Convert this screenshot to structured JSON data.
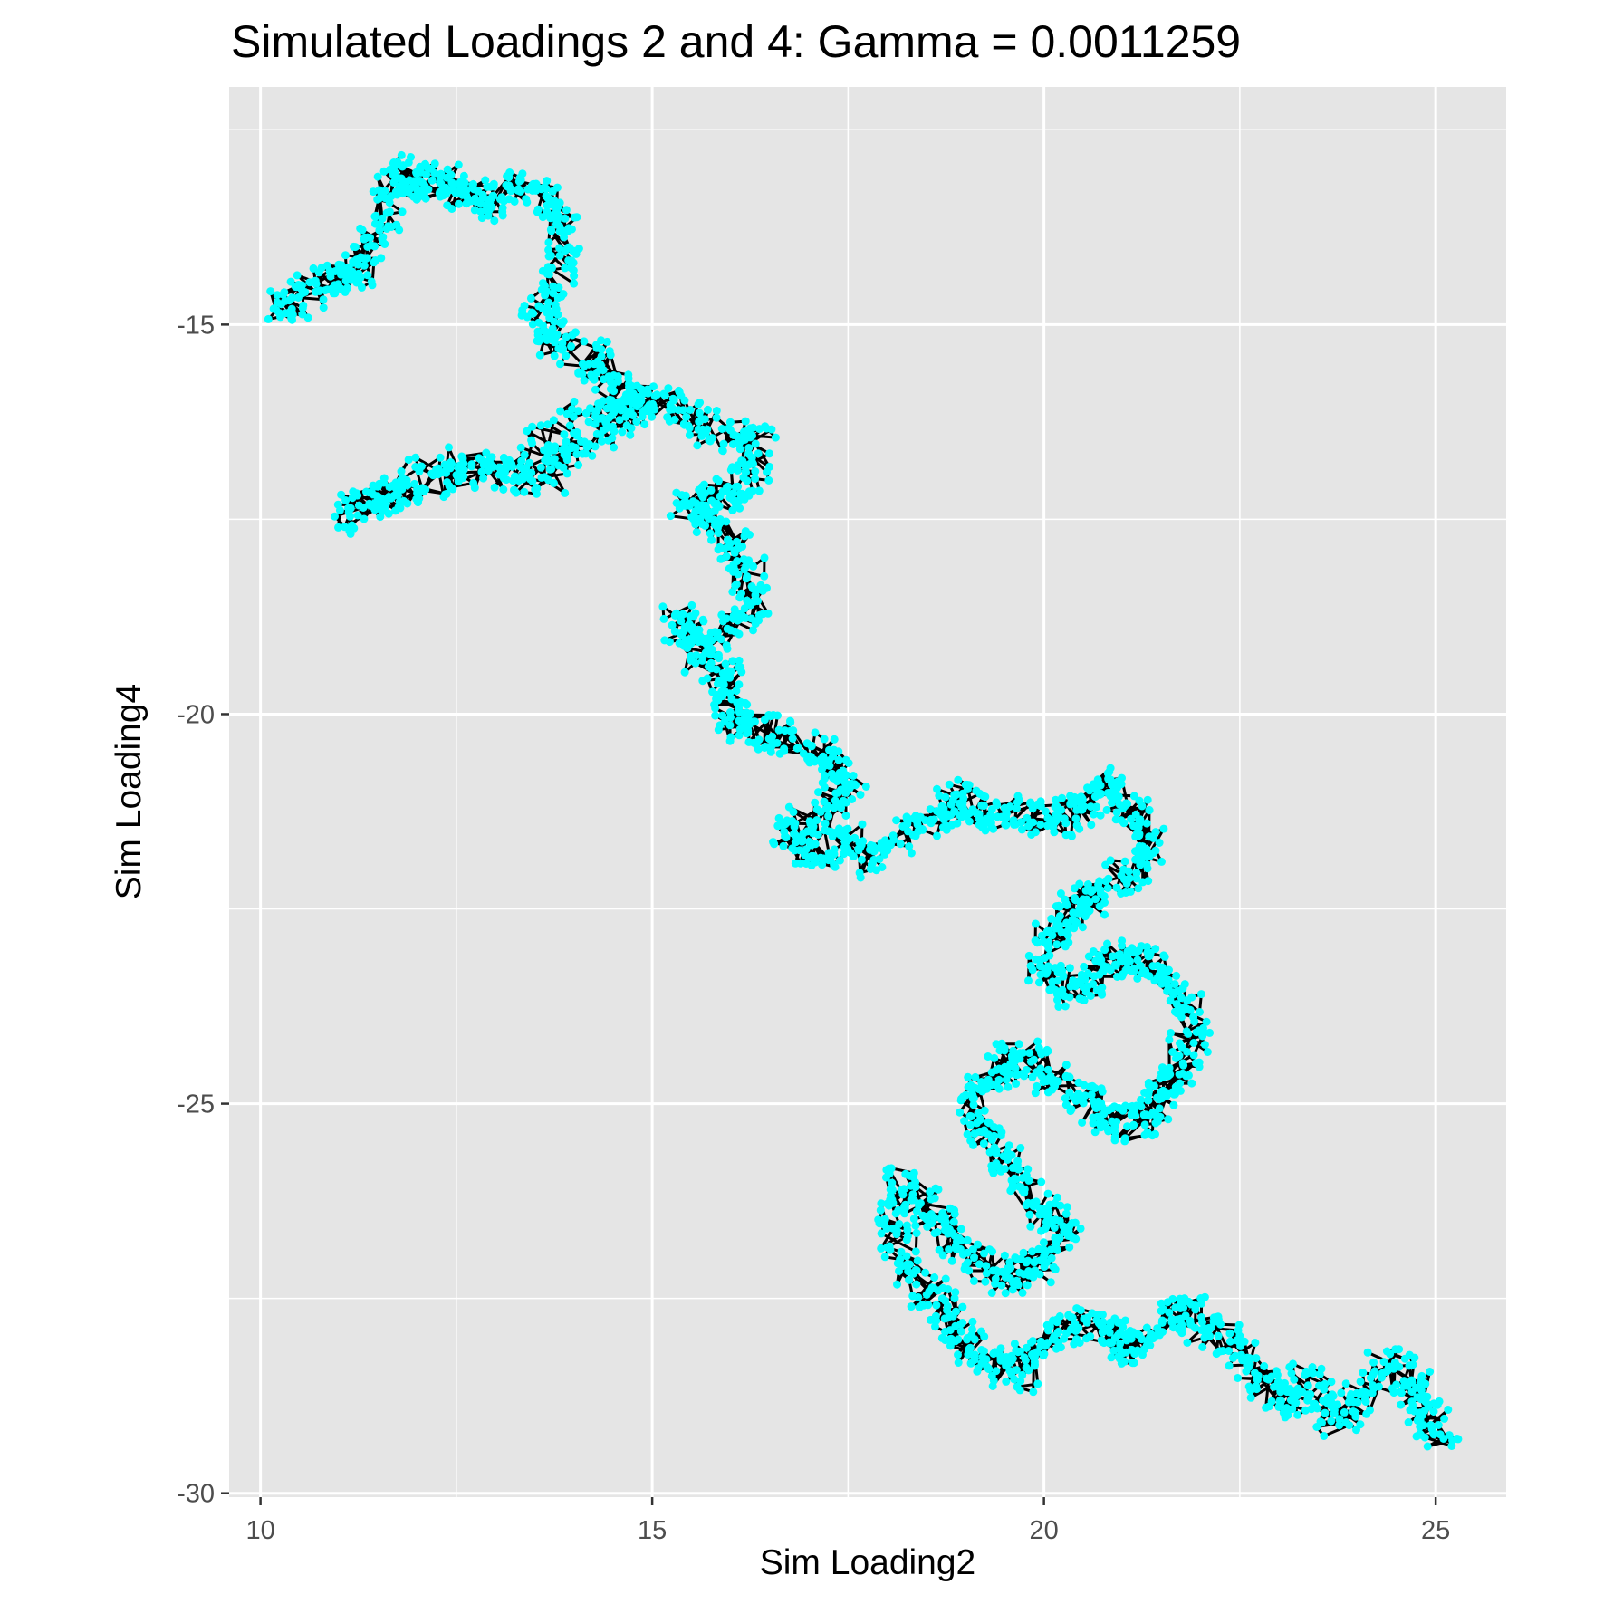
{
  "chart_data": {
    "type": "scatter",
    "title": "Simulated Loadings 2 and 4: Gamma = 0.0011259",
    "xlabel": "Sim Loading2",
    "ylabel": "Sim Loading4",
    "xlim": [
      9.6,
      25.9
    ],
    "ylim": [
      -30.05,
      -11.95
    ],
    "x_ticks": [
      10,
      15,
      20,
      25
    ],
    "y_ticks": [
      -30,
      -25,
      -20,
      -15
    ],
    "x_tick_labels": [
      "10",
      "15",
      "20",
      "25"
    ],
    "y_tick_labels": [
      "-30",
      "-25",
      "-20",
      "-15"
    ],
    "x_minor_gridlines": [
      12.5,
      17.5,
      22.5
    ],
    "y_minor_gridlines": [
      -27.5,
      -22.5,
      -17.5,
      -12.5
    ],
    "grid": true,
    "legend": "none",
    "point_color": "#00FFFF",
    "line_color": "#000000",
    "panel_background": "#E5E5E5",
    "series": [
      {
        "values": [
          [
            10.2,
            -14.8
          ],
          [
            10.5,
            -14.7
          ],
          [
            10.9,
            -14.4
          ],
          [
            11.2,
            -14.5
          ],
          [
            11.4,
            -14.0
          ],
          [
            11.6,
            -13.6
          ],
          [
            11.8,
            -13.0
          ],
          [
            12.0,
            -13.2
          ],
          [
            12.3,
            -13.1
          ],
          [
            12.6,
            -13.3
          ],
          [
            12.9,
            -13.5
          ],
          [
            13.2,
            -13.2
          ],
          [
            13.6,
            -13.4
          ],
          [
            13.9,
            -13.8
          ],
          [
            13.8,
            -14.3
          ],
          [
            13.5,
            -14.8
          ],
          [
            13.7,
            -15.2
          ],
          [
            14.2,
            -15.4
          ],
          [
            14.5,
            -15.8
          ],
          [
            14.9,
            -16.0
          ],
          [
            14.5,
            -16.3
          ],
          [
            14.0,
            -16.6
          ],
          [
            13.6,
            -17.0
          ],
          [
            13.0,
            -16.9
          ],
          [
            12.4,
            -17.0
          ],
          [
            11.8,
            -17.1
          ],
          [
            11.4,
            -17.3
          ],
          [
            11.1,
            -17.5
          ],
          [
            12.1,
            -16.8
          ],
          [
            13.4,
            -16.8
          ],
          [
            14.1,
            -16.1
          ],
          [
            15.0,
            -16.0
          ],
          [
            15.4,
            -16.1
          ],
          [
            15.8,
            -16.4
          ],
          [
            16.4,
            -16.5
          ],
          [
            16.2,
            -17.0
          ],
          [
            15.8,
            -17.2
          ],
          [
            15.4,
            -17.3
          ],
          [
            15.9,
            -17.6
          ],
          [
            16.2,
            -18.0
          ],
          [
            16.3,
            -18.6
          ],
          [
            16.0,
            -18.9
          ],
          [
            15.6,
            -19.1
          ],
          [
            15.3,
            -18.8
          ],
          [
            15.7,
            -19.4
          ],
          [
            16.0,
            -19.6
          ],
          [
            16.0,
            -20.1
          ],
          [
            16.4,
            -20.2
          ],
          [
            16.9,
            -20.4
          ],
          [
            17.3,
            -20.6
          ],
          [
            17.6,
            -21.0
          ],
          [
            17.1,
            -21.3
          ],
          [
            16.7,
            -21.6
          ],
          [
            17.1,
            -21.8
          ],
          [
            17.5,
            -21.6
          ],
          [
            17.8,
            -21.9
          ],
          [
            18.3,
            -21.5
          ],
          [
            18.7,
            -21.3
          ],
          [
            19.0,
            -21.0
          ],
          [
            19.3,
            -21.3
          ],
          [
            19.7,
            -21.2
          ],
          [
            20.1,
            -21.4
          ],
          [
            20.5,
            -21.2
          ],
          [
            20.8,
            -20.8
          ],
          [
            21.1,
            -21.2
          ],
          [
            21.4,
            -21.6
          ],
          [
            21.1,
            -22.0
          ],
          [
            20.7,
            -22.3
          ],
          [
            20.3,
            -22.5
          ],
          [
            20.1,
            -22.8
          ],
          [
            20.0,
            -23.3
          ],
          [
            20.4,
            -23.6
          ],
          [
            20.7,
            -23.3
          ],
          [
            21.0,
            -23.1
          ],
          [
            21.4,
            -23.2
          ],
          [
            21.7,
            -23.6
          ],
          [
            21.9,
            -24.1
          ],
          [
            21.7,
            -24.6
          ],
          [
            21.5,
            -25.0
          ],
          [
            21.2,
            -25.3
          ],
          [
            20.8,
            -25.2
          ],
          [
            20.4,
            -24.9
          ],
          [
            20.0,
            -24.6
          ],
          [
            19.7,
            -24.3
          ],
          [
            19.4,
            -24.6
          ],
          [
            19.1,
            -25.0
          ],
          [
            19.3,
            -25.5
          ],
          [
            19.6,
            -25.9
          ],
          [
            19.9,
            -26.3
          ],
          [
            20.3,
            -26.6
          ],
          [
            20.0,
            -27.0
          ],
          [
            19.6,
            -27.3
          ],
          [
            19.2,
            -27.0
          ],
          [
            18.8,
            -26.7
          ],
          [
            18.5,
            -26.3
          ],
          [
            18.2,
            -26.0
          ],
          [
            18.1,
            -26.6
          ],
          [
            18.3,
            -27.2
          ],
          [
            18.7,
            -27.6
          ],
          [
            18.9,
            -28.0
          ],
          [
            19.3,
            -28.3
          ],
          [
            19.7,
            -28.5
          ],
          [
            20.0,
            -28.1
          ],
          [
            20.4,
            -27.8
          ],
          [
            20.8,
            -27.9
          ],
          [
            21.1,
            -28.2
          ],
          [
            21.4,
            -27.9
          ],
          [
            21.8,
            -27.6
          ],
          [
            22.1,
            -27.9
          ],
          [
            22.5,
            -28.1
          ],
          [
            22.8,
            -28.6
          ],
          [
            23.1,
            -28.9
          ],
          [
            23.4,
            -28.5
          ],
          [
            23.7,
            -29.1
          ],
          [
            24.1,
            -28.7
          ],
          [
            24.4,
            -28.3
          ],
          [
            24.7,
            -28.6
          ],
          [
            24.9,
            -29.0
          ],
          [
            25.1,
            -29.3
          ]
        ]
      }
    ]
  }
}
